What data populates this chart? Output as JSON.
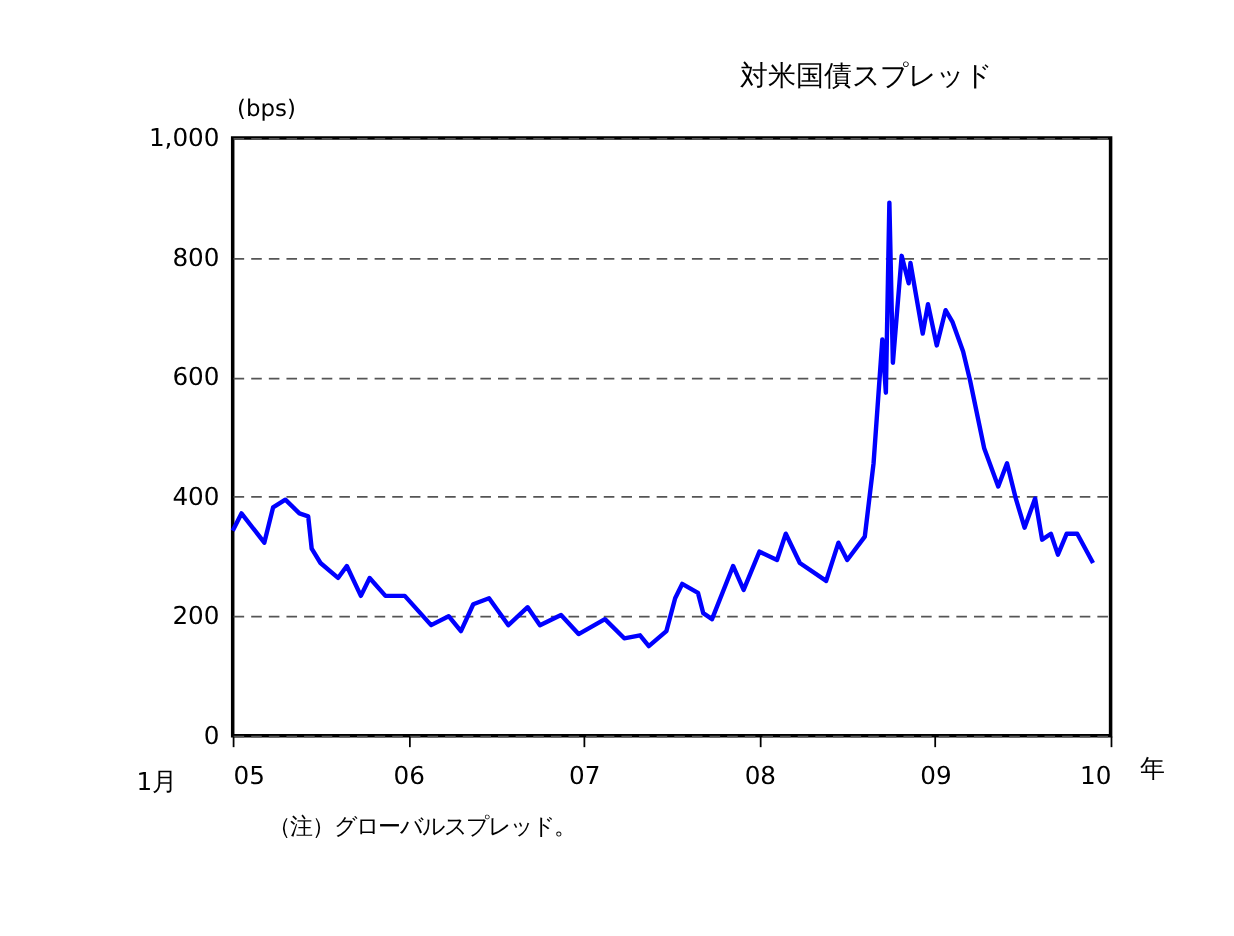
{
  "chart_data": {
    "type": "line",
    "title": "対米国債スプレッド",
    "ylabel": "(bps)",
    "xlabel": "年",
    "annotations": [
      "1月",
      "（注）グローバルスプレッド。"
    ],
    "x": [
      2005.0,
      2005.05,
      2005.18,
      2005.23,
      2005.3,
      2005.38,
      2005.43,
      2005.45,
      2005.5,
      2005.6,
      2005.65,
      2005.73,
      2005.78,
      2005.87,
      2005.98,
      2006.13,
      2006.23,
      2006.3,
      2006.37,
      2006.46,
      2006.57,
      2006.68,
      2006.75,
      2006.87,
      2006.97,
      2007.12,
      2007.23,
      2007.32,
      2007.37,
      2007.47,
      2007.52,
      2007.56,
      2007.65,
      2007.68,
      2007.73,
      2007.85,
      2007.91,
      2008.0,
      2008.1,
      2008.15,
      2008.23,
      2008.38,
      2008.45,
      2008.5,
      2008.6,
      2008.65,
      2008.7,
      2008.72,
      2008.74,
      2008.76,
      2008.81,
      2008.85,
      2008.86,
      2008.93,
      2008.96,
      2009.01,
      2009.06,
      2009.1,
      2009.16,
      2009.2,
      2009.28,
      2009.36,
      2009.41,
      2009.46,
      2009.51,
      2009.57,
      2009.61,
      2009.66,
      2009.7,
      2009.75,
      2009.81,
      2009.9
    ],
    "series": [
      {
        "color": "#0000ff",
        "values": [
          343,
          372,
          323,
          382,
          395,
          372,
          367,
          313,
          289,
          264,
          284,
          234,
          264,
          234,
          234,
          185,
          200,
          175,
          220,
          230,
          185,
          215,
          185,
          202,
          170,
          195,
          163,
          168,
          150,
          175,
          230,
          254,
          239,
          205,
          195,
          284,
          244,
          308,
          294,
          338,
          289,
          259,
          323,
          294,
          333,
          456,
          663,
          574,
          892,
          624,
          803,
          757,
          791,
          673,
          722,
          653,
          712,
          692,
          643,
          594,
          481,
          417,
          456,
          397,
          348,
          397,
          328,
          338,
          303,
          338,
          338,
          289
        ]
      }
    ],
    "xlim": [
      2005,
      2010
    ],
    "xticks": [
      {
        "value": 2005,
        "label": "05"
      },
      {
        "value": 2006,
        "label": "06"
      },
      {
        "value": 2007,
        "label": "07"
      },
      {
        "value": 2008,
        "label": "08"
      },
      {
        "value": 2009,
        "label": "09"
      },
      {
        "value": 2010,
        "label": "10"
      }
    ],
    "ylim": [
      0,
      1000
    ],
    "yticks": [
      0,
      200,
      400,
      600,
      800,
      {
        "value": 1000,
        "label": "1,000"
      }
    ],
    "grid": "y"
  }
}
